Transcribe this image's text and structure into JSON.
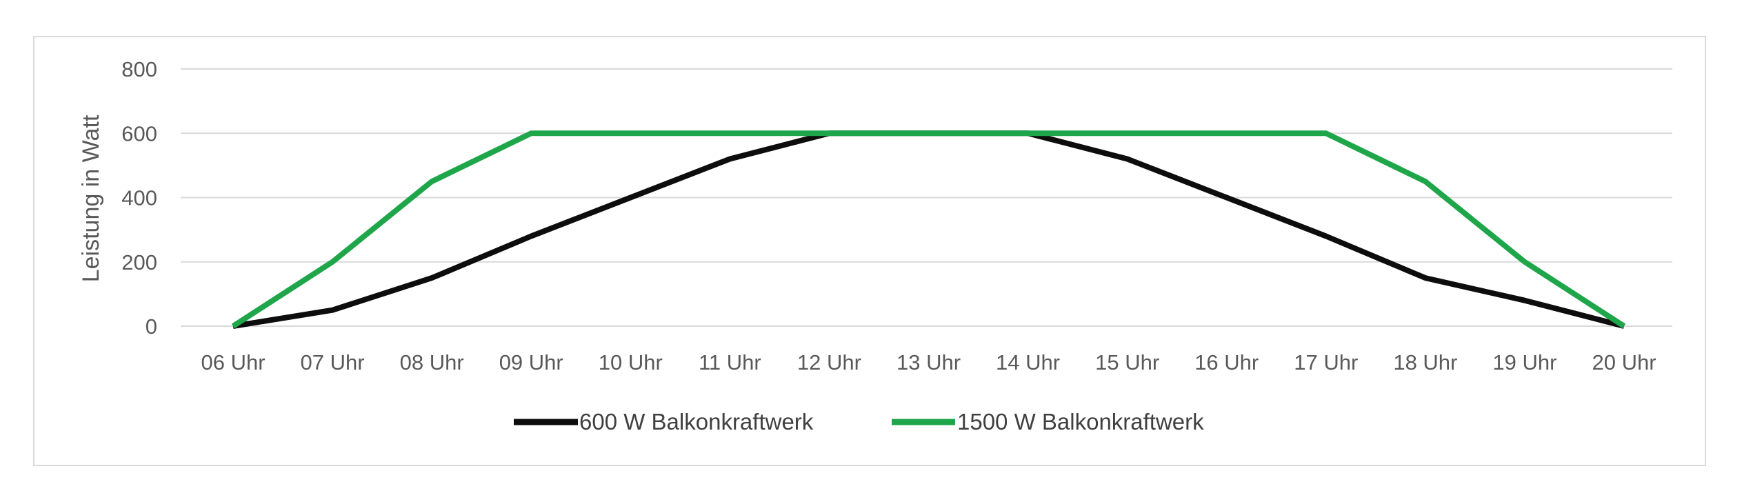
{
  "chart_data": {
    "type": "line",
    "ylabel": "Leistung in Watt",
    "ylim": [
      0,
      800
    ],
    "yticks": [
      0,
      200,
      400,
      600,
      800
    ],
    "grid": true,
    "legend_position": "bottom",
    "categories": [
      "06 Uhr",
      "07 Uhr",
      "08 Uhr",
      "09 Uhr",
      "10 Uhr",
      "11 Uhr",
      "12 Uhr",
      "13 Uhr",
      "14 Uhr",
      "15 Uhr",
      "16 Uhr",
      "17 Uhr",
      "18 Uhr",
      "19 Uhr",
      "20 Uhr"
    ],
    "series": [
      {
        "name": "600 W Balkonkraftwerk",
        "color": "#0d0d0d",
        "values": [
          0,
          50,
          150,
          280,
          400,
          520,
          600,
          600,
          600,
          520,
          400,
          280,
          150,
          80,
          0
        ]
      },
      {
        "name": "1500 W Balkonkraftwerk",
        "color": "#1fa64a",
        "values": [
          0,
          200,
          450,
          600,
          600,
          600,
          600,
          600,
          600,
          600,
          600,
          600,
          450,
          200,
          0
        ]
      }
    ]
  }
}
